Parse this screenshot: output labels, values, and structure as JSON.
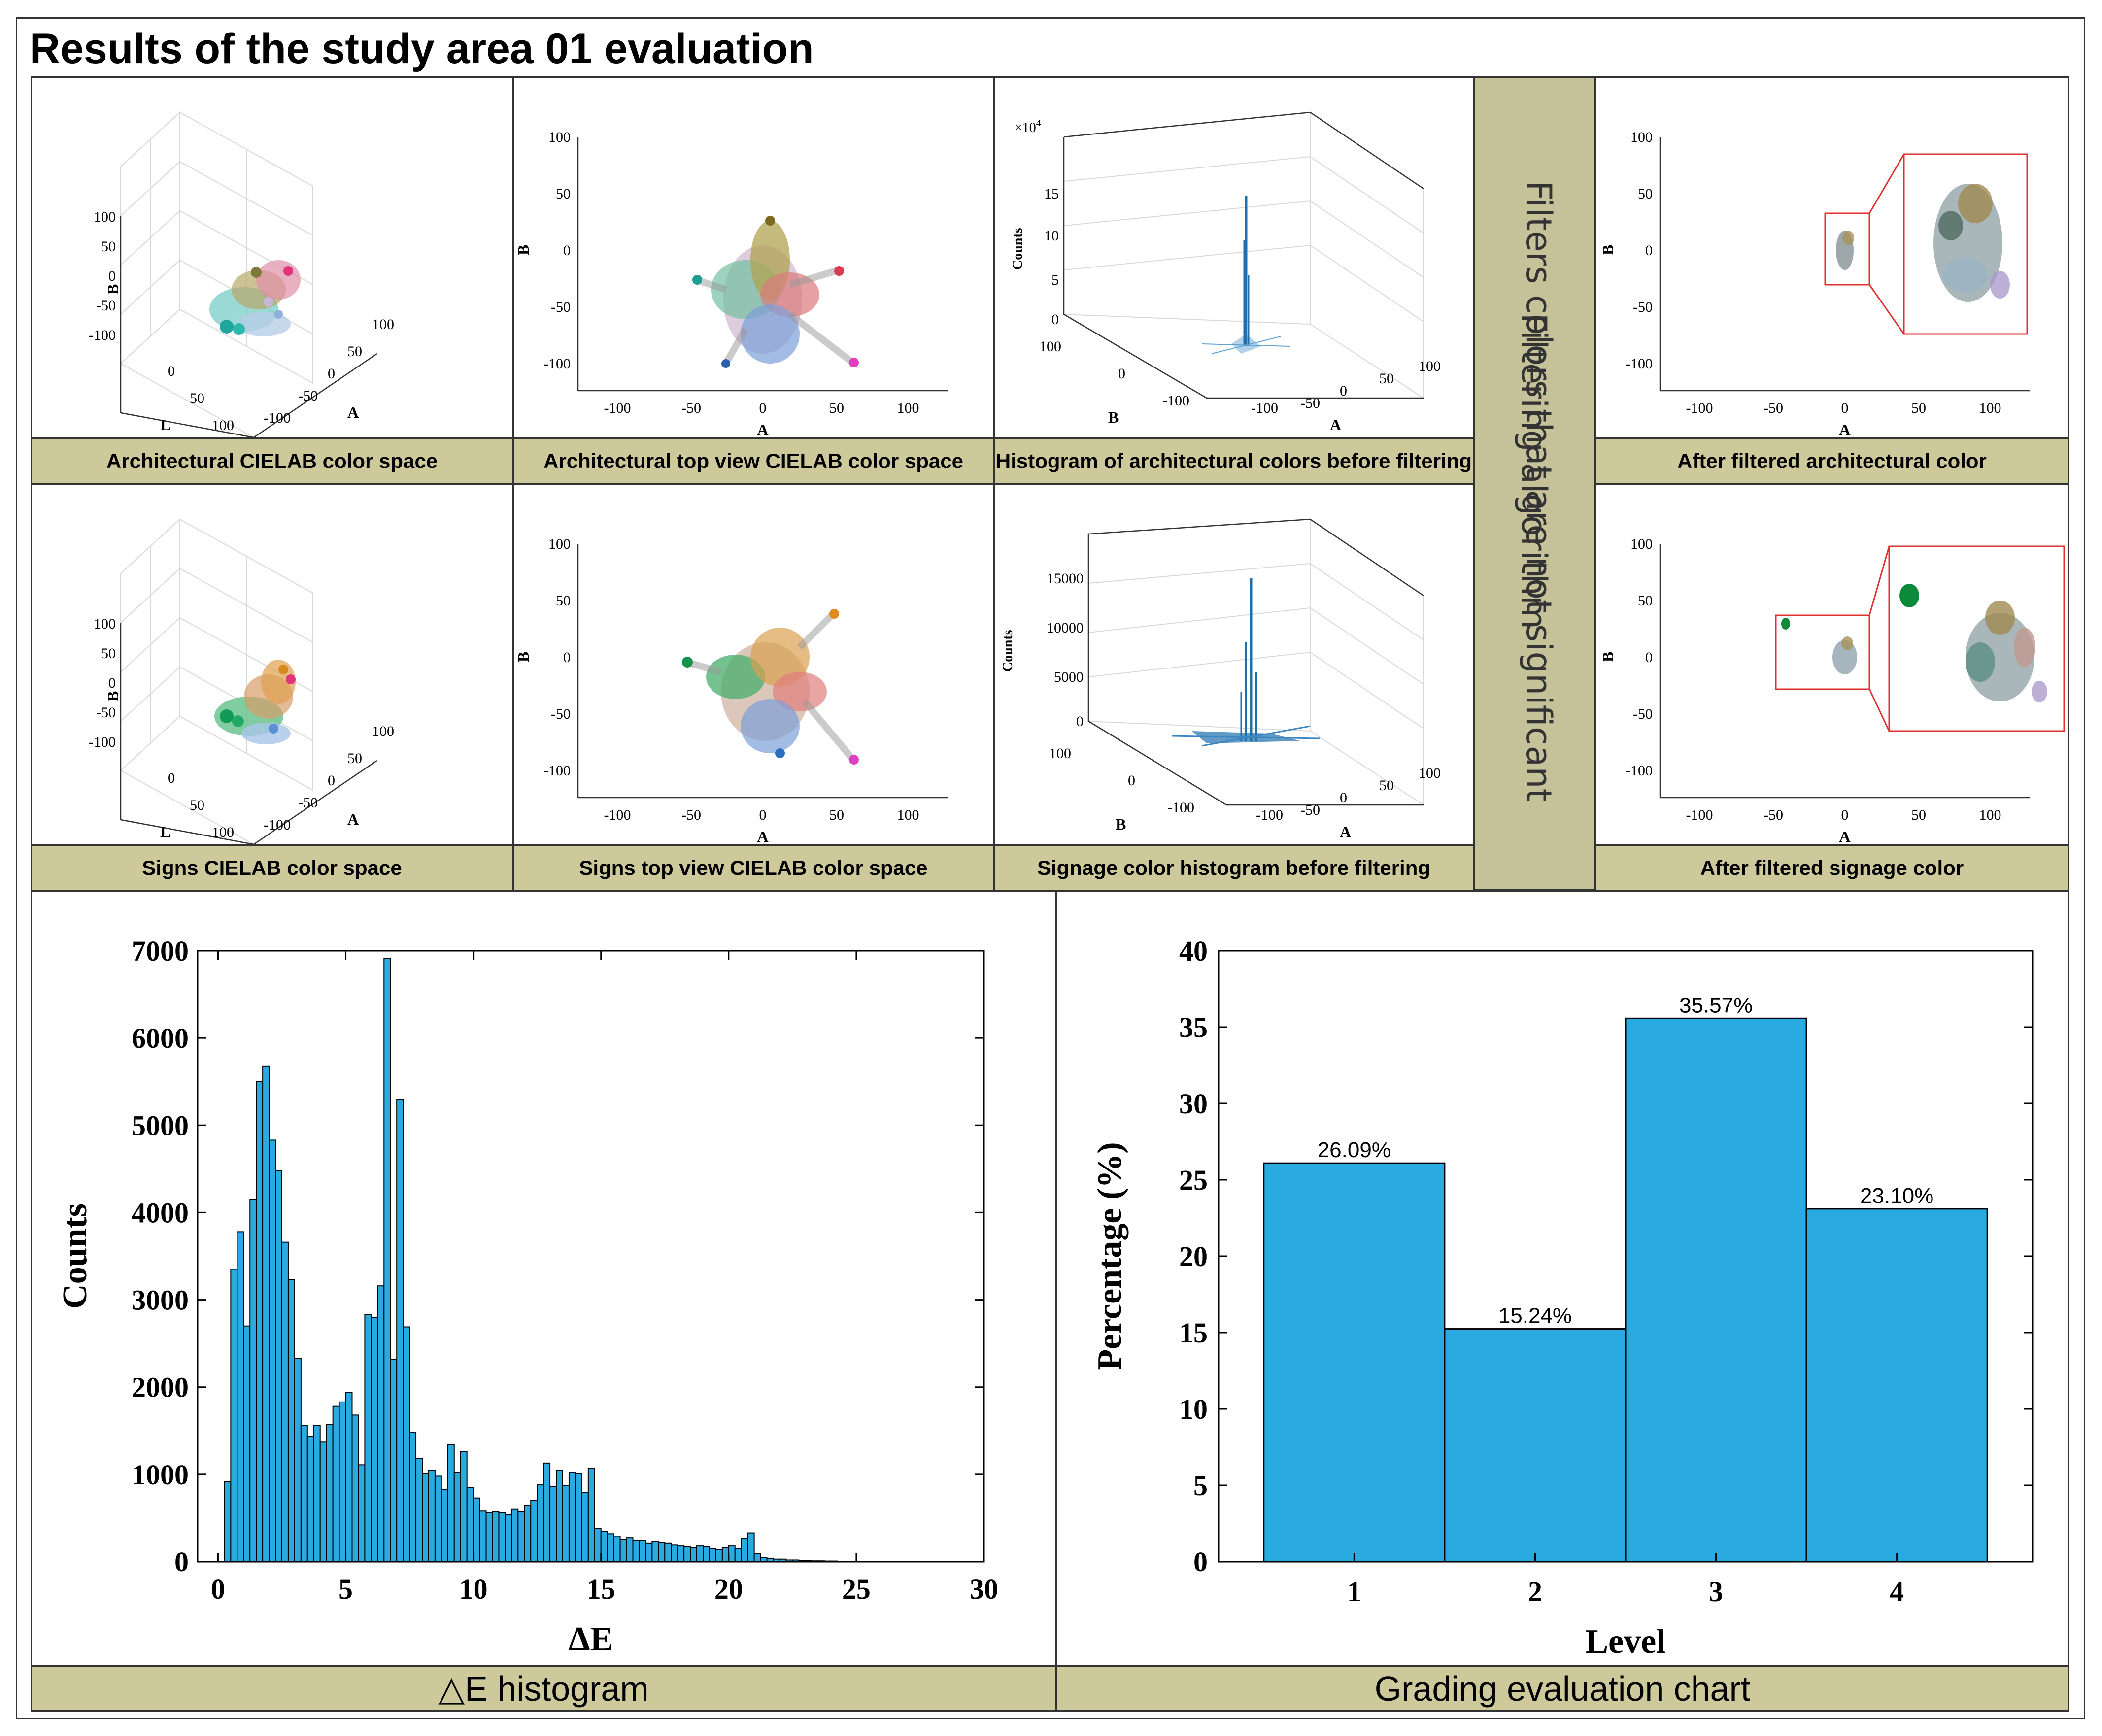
{
  "page_title": "Results of the study area 01 evaluation",
  "panel_labels": {
    "arch_cielab": "Architectural CIELAB color space",
    "arch_top": "Architectural top view CIELAB color space",
    "arch_hist": "Histogram of architectural colors before filtering",
    "arch_filtered": "After filtered architectural color",
    "sign_cielab": "Signs CIELAB color space",
    "sign_top": "Signs top view CIELAB color space",
    "sign_hist": "Signage color histogram before filtering",
    "sign_filtered": "After filtered signage color",
    "de_hist": "△E histogram",
    "grading": "Grading  evaluation chart"
  },
  "filter_band": {
    "line1": "Filtering algorithm",
    "line2": "Filters colors that are not significant"
  },
  "small_plots": {
    "axis_A": "A",
    "axis_B": "B",
    "axis_L": "L",
    "counts_label": "Counts",
    "top_view_x_ticks": [
      "-100",
      "-50",
      "0",
      "50",
      "100"
    ],
    "top_view_y_ticks": [
      "100",
      "50",
      "0",
      "-50",
      "-100"
    ],
    "iso_B_ticks": [
      "100",
      "50",
      "0",
      "-50",
      "-100"
    ],
    "iso_L_ticks": [
      "0",
      "50",
      "100"
    ],
    "iso_A_ticks": [
      "100",
      "50",
      "0",
      "-50",
      "-100"
    ],
    "arch_hist_exponent": "×10",
    "arch_hist_exponent_power": "4",
    "arch_hist_z_ticks": [
      "15",
      "10",
      "5",
      "0"
    ],
    "sign_hist_z_ticks": [
      "15000",
      "10000",
      "5000",
      "0"
    ],
    "hist_B_ticks": [
      "100",
      "0",
      "-100"
    ],
    "hist_A_ticks": [
      "100",
      "50",
      "0",
      "-50",
      "-100"
    ]
  },
  "chart_data": [
    {
      "type": "bar",
      "title": "△E histogram",
      "xlabel": "ΔE",
      "ylabel": "Counts",
      "xlim": [
        -0.8,
        30
      ],
      "ylim": [
        0,
        7000
      ],
      "xticks": [
        0,
        5,
        10,
        15,
        20,
        25,
        30
      ],
      "yticks": [
        0,
        1000,
        2000,
        3000,
        4000,
        5000,
        6000,
        7000
      ],
      "bin_width": 0.25,
      "bin_start": 0.25,
      "values": [
        920,
        3350,
        3780,
        2700,
        4150,
        5500,
        5680,
        4830,
        4480,
        3660,
        3230,
        2330,
        1560,
        1430,
        1560,
        1370,
        1570,
        1780,
        1830,
        1940,
        1680,
        1110,
        2830,
        2800,
        3160,
        6910,
        2320,
        5300,
        2690,
        1480,
        1180,
        1010,
        1040,
        980,
        830,
        1340,
        1020,
        1260,
        850,
        730,
        580,
        560,
        570,
        560,
        540,
        600,
        570,
        640,
        700,
        880,
        1130,
        860,
        1040,
        870,
        1020,
        1010,
        790,
        1070,
        380,
        350,
        320,
        290,
        250,
        270,
        240,
        240,
        210,
        230,
        220,
        210,
        190,
        180,
        170,
        160,
        180,
        170,
        150,
        140,
        160,
        180,
        150,
        260,
        330,
        90,
        50,
        40,
        30,
        30,
        20,
        20,
        15,
        15,
        10,
        10,
        8,
        8,
        5,
        5,
        4,
        4,
        3,
        3,
        2,
        2,
        2,
        1,
        1,
        1,
        1,
        1
      ]
    },
    {
      "type": "bar",
      "title": "Grading  evaluation chart",
      "xlabel": "Level",
      "ylabel": "Percentage (%)",
      "categories": [
        "1",
        "2",
        "3",
        "4"
      ],
      "values": [
        26.09,
        15.24,
        35.57,
        23.1
      ],
      "data_labels": [
        "26.09%",
        "15.24%",
        "35.57%",
        "23.10%"
      ],
      "ylim": [
        0,
        40
      ],
      "yticks": [
        0,
        5,
        10,
        15,
        20,
        25,
        30,
        35,
        40
      ]
    }
  ],
  "colors": {
    "bar_blue": "#29abe2",
    "label_band": "#cdc99b",
    "filter_band": "#c5c199",
    "hist_blue": "#1f6fae"
  }
}
